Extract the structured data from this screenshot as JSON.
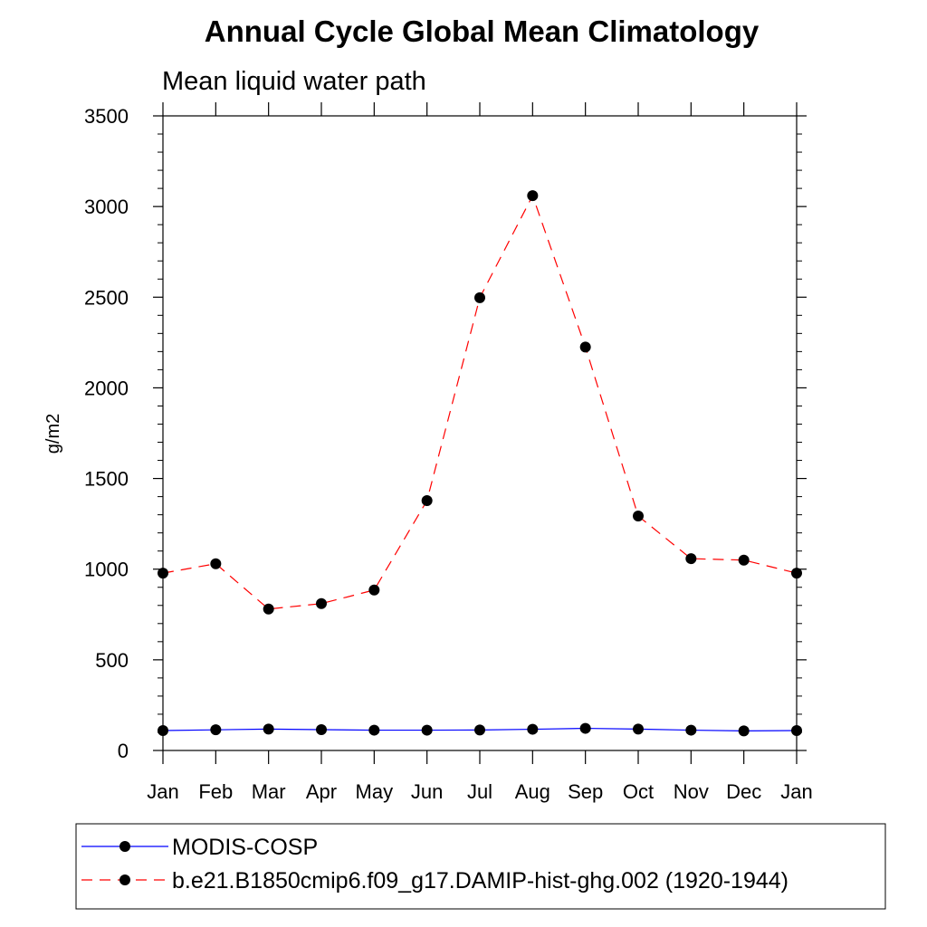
{
  "chart_data": {
    "type": "line",
    "title": "Annual Cycle Global Mean Climatology",
    "subtitle": "Mean liquid water path",
    "ylabel": "g/m2",
    "xlabel": "",
    "categories": [
      "Jan",
      "Feb",
      "Mar",
      "Apr",
      "May",
      "Jun",
      "Jul",
      "Aug",
      "Sep",
      "Oct",
      "Nov",
      "Dec",
      "Jan"
    ],
    "ylim": [
      0,
      3500
    ],
    "yticks": [
      0,
      500,
      1000,
      1500,
      2000,
      2500,
      3000,
      3500
    ],
    "ytick_labels": [
      "0",
      "500",
      "1000",
      "1500",
      "2000",
      "2500",
      "3000",
      "3500"
    ],
    "series": [
      {
        "name": "MODIS-COSP",
        "color": "#0000ff",
        "dash": "solid",
        "marker": "filled-circle",
        "values": [
          110,
          114,
          118,
          115,
          112,
          112,
          113,
          117,
          122,
          118,
          112,
          108,
          110
        ]
      },
      {
        "name": "b.e21.B1850cmip6.f09_g17.DAMIP-hist-ghg.002 (1920-1944)",
        "color": "#ff0000",
        "dash": "dashed",
        "marker": "filled-circle",
        "values": [
          978,
          1030,
          780,
          810,
          885,
          1378,
          2497,
          3060,
          2225,
          1293,
          1058,
          1050,
          978
        ]
      }
    ],
    "legend_position": "bottom",
    "grid": false
  }
}
